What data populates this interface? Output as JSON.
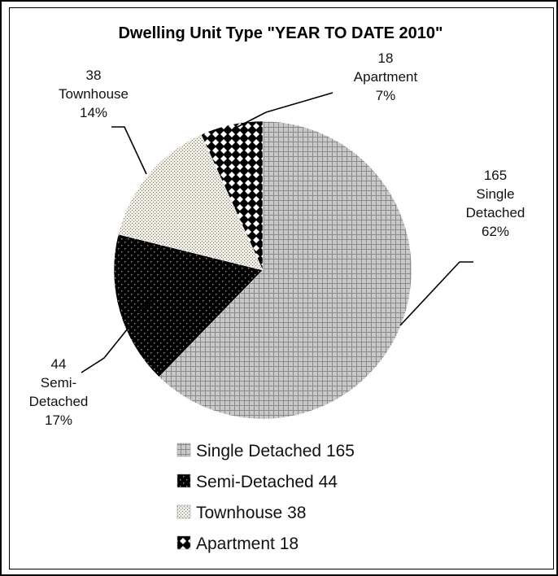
{
  "chart_data": {
    "type": "pie",
    "title": "Dwelling Unit Type \"YEAR TO DATE 2010\"",
    "slices": [
      {
        "name": "Single Detached",
        "value": 165,
        "percent": "62%",
        "label_lines": [
          "165",
          "Single",
          "Detached",
          "62%"
        ],
        "legend": "Single Detached 165",
        "pattern": "grid",
        "color": "#c8c8c8"
      },
      {
        "name": "Semi-Detached",
        "value": 44,
        "percent": "17%",
        "label_lines": [
          "44",
          "Semi-",
          "Detached",
          "17%"
        ],
        "legend": "Semi-Detached 44",
        "pattern": "dots-on-black",
        "color": "#000000"
      },
      {
        "name": "Townhouse",
        "value": 38,
        "percent": "14%",
        "label_lines": [
          "38",
          "Townhouse",
          "14%"
        ],
        "legend": "Townhouse 38",
        "pattern": "fine-dots",
        "color": "#efece4"
      },
      {
        "name": "Apartment",
        "value": 18,
        "percent": "7%",
        "label_lines": [
          "18",
          "Apartment",
          "7%"
        ],
        "legend": "Apartment 18",
        "pattern": "checker",
        "color": "#000000"
      }
    ],
    "legend_position": "bottom"
  }
}
